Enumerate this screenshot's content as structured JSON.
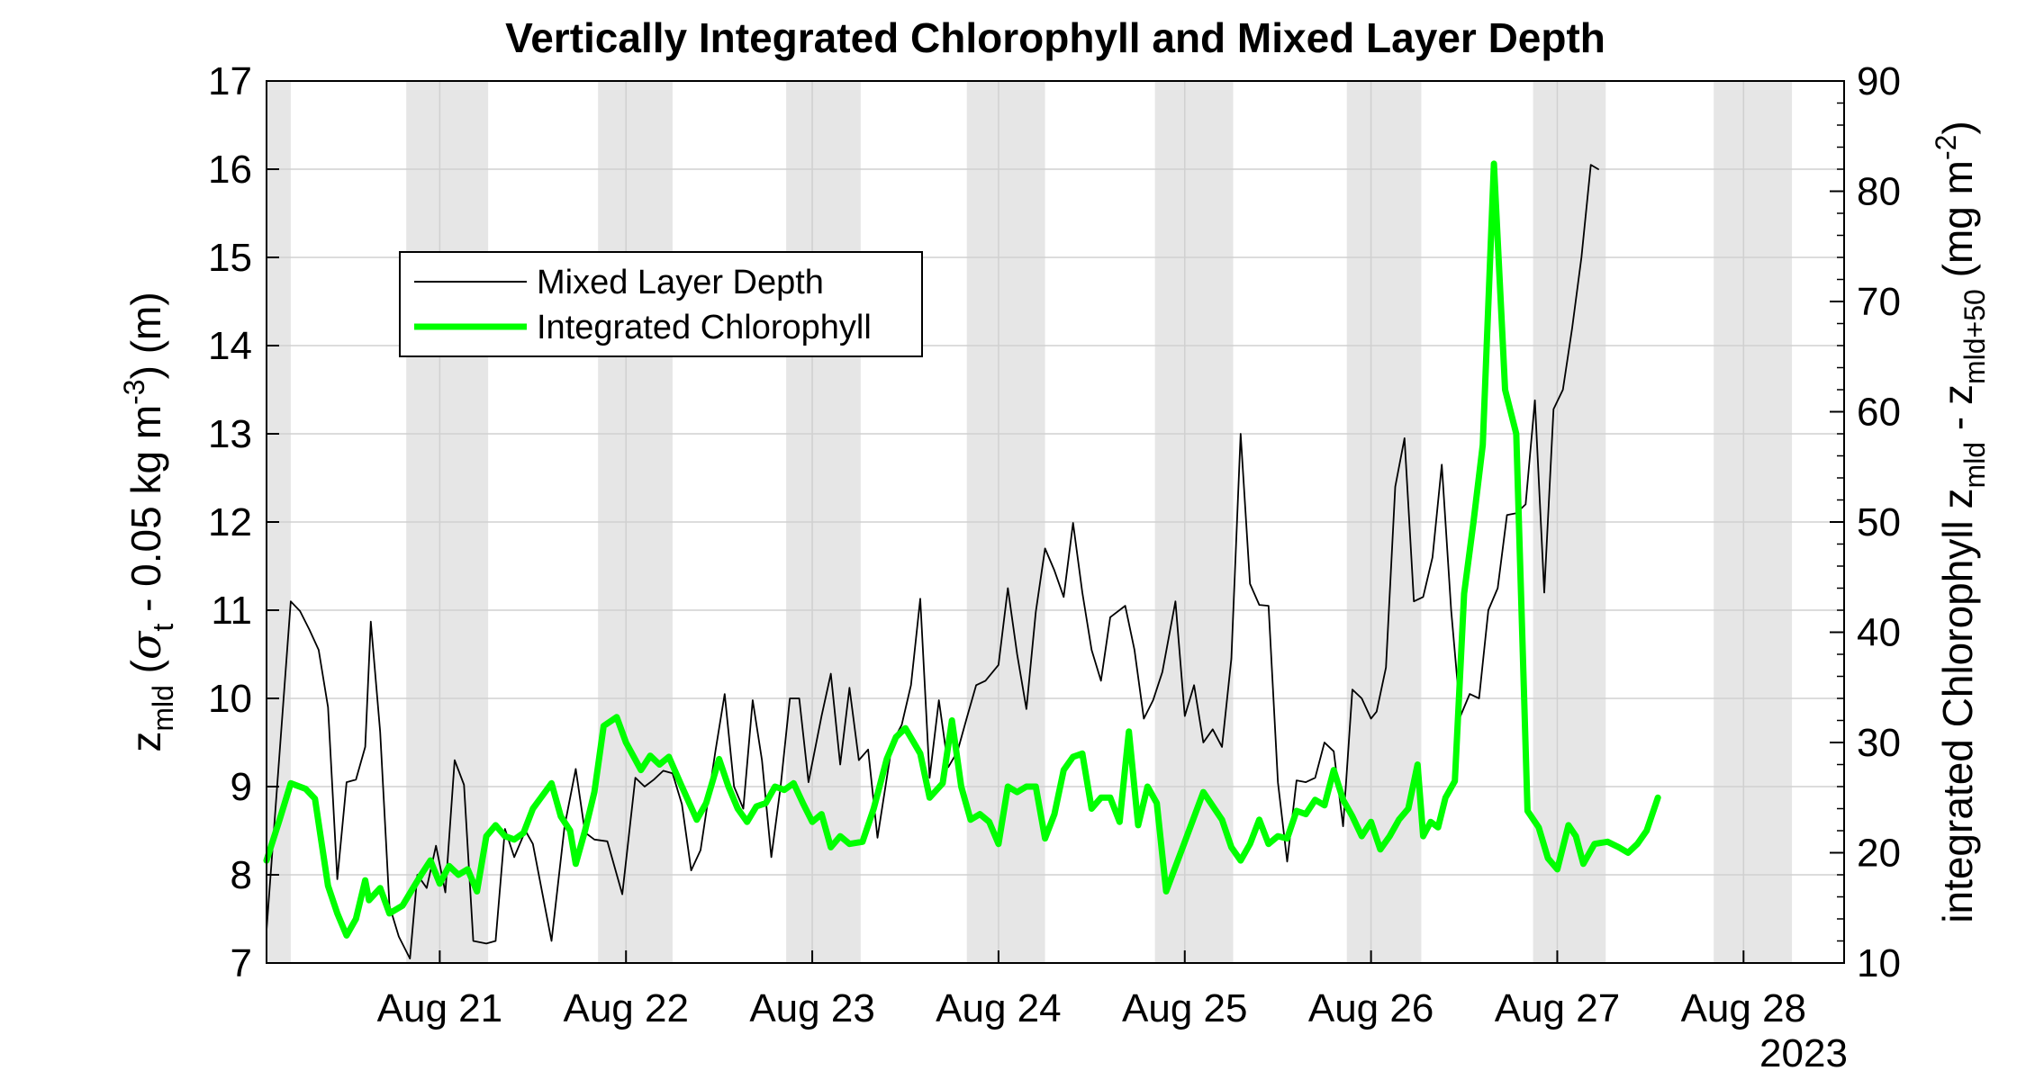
{
  "chart_data": {
    "type": "line",
    "title": "Vertically Integrated Chlorophyll and Mixed Layer Depth",
    "left_axis": {
      "label": "z_mld (σ_t - 0.05 kg m^-3) (m)",
      "label_parts": {
        "main": "z",
        "sub": "mld",
        "after_sub": " (",
        "sigma": "σ",
        "sigma_sub": "t",
        "after_sigma": " - 0.05 kg m",
        "exp": "-3",
        "tail": ") (m)"
      },
      "ylim": [
        7,
        17
      ],
      "ticks": [
        "7",
        "8",
        "9",
        "10",
        "11",
        "12",
        "13",
        "14",
        "15",
        "16",
        "17"
      ]
    },
    "right_axis": {
      "label": "integrated Chlorophyll z_mld - z_mld+50 (mg m^-2)",
      "label_parts": {
        "pre": "integrated Chlorophyll z",
        "sub1": "mld",
        "mid": " - z",
        "sub2": "mld+50",
        "unit": " (mg m",
        "exp": "-2",
        "tail": ")"
      },
      "ylim": [
        10,
        90
      ],
      "ticks": [
        "10",
        "20",
        "30",
        "40",
        "50",
        "60",
        "70",
        "80",
        "90"
      ]
    },
    "x_axis": {
      "unit": "days since Aug 20 2023 00:00",
      "xlim": [
        20.07,
        28.54
      ],
      "ticks": [
        {
          "x": 21,
          "label": "Aug 21"
        },
        {
          "x": 22,
          "label": "Aug 22"
        },
        {
          "x": 23,
          "label": "Aug 23"
        },
        {
          "x": 24,
          "label": "Aug 24"
        },
        {
          "x": 25,
          "label": "Aug 25"
        },
        {
          "x": 26,
          "label": "Aug 26"
        },
        {
          "x": 27,
          "label": "Aug 27"
        },
        {
          "x": 28,
          "label": "Aug 28"
        }
      ],
      "year_label": "2023"
    },
    "night_bands": [
      [
        20.07,
        20.2
      ],
      [
        20.82,
        21.26
      ],
      [
        21.85,
        22.25
      ],
      [
        22.86,
        23.26
      ],
      [
        23.83,
        24.25
      ],
      [
        24.84,
        25.26
      ],
      [
        25.87,
        26.27
      ],
      [
        26.87,
        27.26
      ],
      [
        27.84,
        28.26
      ]
    ],
    "legend": {
      "position": "upper-left",
      "entries": [
        "Mixed Layer Depth",
        "Integrated Chlorophyll"
      ]
    },
    "series": [
      {
        "name": "Mixed Layer Depth",
        "axis": "left",
        "color": "#000000",
        "points": [
          [
            20.07,
            7.37
          ],
          [
            20.2,
            11.1
          ],
          [
            20.25,
            10.99
          ],
          [
            20.3,
            10.78
          ],
          [
            20.35,
            10.55
          ],
          [
            20.4,
            9.9
          ],
          [
            20.45,
            7.95
          ],
          [
            20.5,
            9.05
          ],
          [
            20.55,
            9.08
          ],
          [
            20.6,
            9.45
          ],
          [
            20.63,
            10.87
          ],
          [
            20.68,
            9.62
          ],
          [
            20.73,
            7.65
          ],
          [
            20.78,
            7.3
          ],
          [
            20.84,
            7.05
          ],
          [
            20.88,
            8.0
          ],
          [
            20.93,
            7.85
          ],
          [
            20.98,
            8.33
          ],
          [
            21.03,
            7.8
          ],
          [
            21.08,
            9.3
          ],
          [
            21.13,
            9.02
          ],
          [
            21.18,
            7.25
          ],
          [
            21.25,
            7.22
          ],
          [
            21.3,
            7.25
          ],
          [
            21.35,
            8.52
          ],
          [
            21.4,
            8.2
          ],
          [
            21.46,
            8.5
          ],
          [
            21.5,
            8.35
          ],
          [
            21.6,
            7.25
          ],
          [
            21.67,
            8.55
          ],
          [
            21.73,
            9.2
          ],
          [
            21.78,
            8.48
          ],
          [
            21.83,
            8.4
          ],
          [
            21.9,
            8.38
          ],
          [
            21.98,
            7.78
          ],
          [
            22.05,
            9.1
          ],
          [
            22.1,
            9.0
          ],
          [
            22.15,
            9.08
          ],
          [
            22.2,
            9.18
          ],
          [
            22.25,
            9.15
          ],
          [
            22.3,
            8.8
          ],
          [
            22.35,
            8.05
          ],
          [
            22.4,
            8.28
          ],
          [
            22.48,
            9.4
          ],
          [
            22.53,
            10.05
          ],
          [
            22.58,
            9.0
          ],
          [
            22.63,
            8.75
          ],
          [
            22.68,
            9.98
          ],
          [
            22.73,
            9.3
          ],
          [
            22.78,
            8.2
          ],
          [
            22.83,
            9.0
          ],
          [
            22.88,
            10.0
          ],
          [
            22.93,
            10.0
          ],
          [
            22.98,
            9.05
          ],
          [
            23.05,
            9.8
          ],
          [
            23.1,
            10.28
          ],
          [
            23.15,
            9.25
          ],
          [
            23.2,
            10.12
          ],
          [
            23.25,
            9.3
          ],
          [
            23.3,
            9.42
          ],
          [
            23.35,
            8.42
          ],
          [
            23.43,
            9.5
          ],
          [
            23.48,
            9.7
          ],
          [
            23.53,
            10.15
          ],
          [
            23.58,
            11.13
          ],
          [
            23.63,
            9.1
          ],
          [
            23.68,
            9.98
          ],
          [
            23.73,
            9.22
          ],
          [
            23.78,
            9.4
          ],
          [
            23.83,
            9.78
          ],
          [
            23.88,
            10.15
          ],
          [
            23.93,
            10.2
          ],
          [
            24.0,
            10.38
          ],
          [
            24.05,
            11.25
          ],
          [
            24.1,
            10.5
          ],
          [
            24.15,
            9.88
          ],
          [
            24.2,
            10.98
          ],
          [
            24.25,
            11.7
          ],
          [
            24.3,
            11.45
          ],
          [
            24.35,
            11.15
          ],
          [
            24.4,
            11.99
          ],
          [
            24.45,
            11.2
          ],
          [
            24.5,
            10.55
          ],
          [
            24.55,
            10.2
          ],
          [
            24.6,
            10.92
          ],
          [
            24.68,
            11.05
          ],
          [
            24.73,
            10.55
          ],
          [
            24.78,
            9.77
          ],
          [
            24.83,
            9.98
          ],
          [
            24.88,
            10.3
          ],
          [
            24.95,
            11.1
          ],
          [
            25.0,
            9.8
          ],
          [
            25.05,
            10.15
          ],
          [
            25.1,
            9.5
          ],
          [
            25.15,
            9.65
          ],
          [
            25.2,
            9.45
          ],
          [
            25.25,
            10.45
          ],
          [
            25.3,
            13.0
          ],
          [
            25.35,
            11.3
          ],
          [
            25.4,
            11.06
          ],
          [
            25.45,
            11.05
          ],
          [
            25.5,
            9.05
          ],
          [
            25.55,
            8.15
          ],
          [
            25.6,
            9.07
          ],
          [
            25.65,
            9.05
          ],
          [
            25.7,
            9.1
          ],
          [
            25.75,
            9.5
          ],
          [
            25.8,
            9.4
          ],
          [
            25.85,
            8.55
          ],
          [
            25.9,
            10.1
          ],
          [
            25.95,
            10.0
          ],
          [
            26.0,
            9.77
          ],
          [
            26.03,
            9.85
          ],
          [
            26.08,
            10.35
          ],
          [
            26.13,
            12.4
          ],
          [
            26.18,
            12.95
          ],
          [
            26.23,
            11.1
          ],
          [
            26.28,
            11.15
          ],
          [
            26.33,
            11.6
          ],
          [
            26.38,
            12.65
          ],
          [
            26.43,
            11.0
          ],
          [
            26.48,
            9.8
          ],
          [
            26.53,
            10.05
          ],
          [
            26.58,
            10.0
          ],
          [
            26.63,
            11.0
          ],
          [
            26.68,
            11.25
          ],
          [
            26.73,
            12.08
          ],
          [
            26.78,
            12.1
          ],
          [
            26.83,
            12.2
          ],
          [
            26.88,
            13.38
          ],
          [
            26.93,
            11.2
          ],
          [
            26.98,
            13.28
          ],
          [
            27.03,
            13.5
          ],
          [
            27.08,
            14.2
          ],
          [
            27.13,
            15.0
          ],
          [
            27.18,
            16.05
          ],
          [
            27.22,
            16.0
          ]
        ]
      },
      {
        "name": "Integrated Chlorophyll",
        "axis": "right",
        "color": "#00ff00",
        "points": [
          [
            20.07,
            19.3
          ],
          [
            20.14,
            23.0
          ],
          [
            20.2,
            26.3
          ],
          [
            20.28,
            25.8
          ],
          [
            20.33,
            24.9
          ],
          [
            20.4,
            17.0
          ],
          [
            20.45,
            14.5
          ],
          [
            20.5,
            12.5
          ],
          [
            20.55,
            14.0
          ],
          [
            20.6,
            17.5
          ],
          [
            20.62,
            15.7
          ],
          [
            20.68,
            16.8
          ],
          [
            20.73,
            14.5
          ],
          [
            20.8,
            15.2
          ],
          [
            20.85,
            16.6
          ],
          [
            20.9,
            18.0
          ],
          [
            20.95,
            19.3
          ],
          [
            21.0,
            17.2
          ],
          [
            21.05,
            18.8
          ],
          [
            21.1,
            18.0
          ],
          [
            21.15,
            18.5
          ],
          [
            21.2,
            16.5
          ],
          [
            21.25,
            21.5
          ],
          [
            21.3,
            22.5
          ],
          [
            21.35,
            21.5
          ],
          [
            21.4,
            21.2
          ],
          [
            21.45,
            21.8
          ],
          [
            21.5,
            24.0
          ],
          [
            21.6,
            26.3
          ],
          [
            21.65,
            23.3
          ],
          [
            21.7,
            22.0
          ],
          [
            21.73,
            19.0
          ],
          [
            21.78,
            22.0
          ],
          [
            21.83,
            25.5
          ],
          [
            21.88,
            31.5
          ],
          [
            21.95,
            32.3
          ],
          [
            22.0,
            30.0
          ],
          [
            22.08,
            27.5
          ],
          [
            22.13,
            28.8
          ],
          [
            22.18,
            28.0
          ],
          [
            22.23,
            28.7
          ],
          [
            22.3,
            26.0
          ],
          [
            22.38,
            23.0
          ],
          [
            22.43,
            24.5
          ],
          [
            22.5,
            28.5
          ],
          [
            22.55,
            26.0
          ],
          [
            22.6,
            24.0
          ],
          [
            22.65,
            22.8
          ],
          [
            22.7,
            24.2
          ],
          [
            22.75,
            24.5
          ],
          [
            22.8,
            26.0
          ],
          [
            22.85,
            25.7
          ],
          [
            22.9,
            26.3
          ],
          [
            22.95,
            24.5
          ],
          [
            23.0,
            22.8
          ],
          [
            23.05,
            23.5
          ],
          [
            23.1,
            20.5
          ],
          [
            23.15,
            21.5
          ],
          [
            23.2,
            20.8
          ],
          [
            23.27,
            21.0
          ],
          [
            23.33,
            24.0
          ],
          [
            23.4,
            28.5
          ],
          [
            23.45,
            30.5
          ],
          [
            23.5,
            31.3
          ],
          [
            23.58,
            29.0
          ],
          [
            23.63,
            25.0
          ],
          [
            23.7,
            26.3
          ],
          [
            23.75,
            32.0
          ],
          [
            23.8,
            26.0
          ],
          [
            23.85,
            23.0
          ],
          [
            23.9,
            23.5
          ],
          [
            23.95,
            22.8
          ],
          [
            24.0,
            20.8
          ],
          [
            24.05,
            26.0
          ],
          [
            24.1,
            25.5
          ],
          [
            24.15,
            26.0
          ],
          [
            24.2,
            26.0
          ],
          [
            24.25,
            21.3
          ],
          [
            24.3,
            23.5
          ],
          [
            24.35,
            27.5
          ],
          [
            24.4,
            28.7
          ],
          [
            24.45,
            29.0
          ],
          [
            24.5,
            24.0
          ],
          [
            24.55,
            25.0
          ],
          [
            24.6,
            25.0
          ],
          [
            24.65,
            22.8
          ],
          [
            24.7,
            31.0
          ],
          [
            24.75,
            22.5
          ],
          [
            24.8,
            26.0
          ],
          [
            24.85,
            24.5
          ],
          [
            24.9,
            16.5
          ],
          [
            25.0,
            21.0
          ],
          [
            25.1,
            25.5
          ],
          [
            25.2,
            23.0
          ],
          [
            25.25,
            20.5
          ],
          [
            25.3,
            19.3
          ],
          [
            25.35,
            20.8
          ],
          [
            25.4,
            23.0
          ],
          [
            25.45,
            20.8
          ],
          [
            25.5,
            21.5
          ],
          [
            25.55,
            21.3
          ],
          [
            25.6,
            23.8
          ],
          [
            25.65,
            23.5
          ],
          [
            25.7,
            24.8
          ],
          [
            25.75,
            24.3
          ],
          [
            25.8,
            27.5
          ],
          [
            25.85,
            24.8
          ],
          [
            25.9,
            23.3
          ],
          [
            25.95,
            21.5
          ],
          [
            26.0,
            22.8
          ],
          [
            26.05,
            20.3
          ],
          [
            26.1,
            21.5
          ],
          [
            26.15,
            23.0
          ],
          [
            26.2,
            24.0
          ],
          [
            26.25,
            28.0
          ],
          [
            26.28,
            21.5
          ],
          [
            26.32,
            22.8
          ],
          [
            26.36,
            22.3
          ],
          [
            26.4,
            25.0
          ],
          [
            26.45,
            26.5
          ],
          [
            26.5,
            43.5
          ],
          [
            26.55,
            50.0
          ],
          [
            26.6,
            57.0
          ],
          [
            26.66,
            82.5
          ],
          [
            26.72,
            62.0
          ],
          [
            26.78,
            58.0
          ],
          [
            26.84,
            23.8
          ],
          [
            26.9,
            22.3
          ],
          [
            26.95,
            19.5
          ],
          [
            27.0,
            18.5
          ],
          [
            27.06,
            22.5
          ],
          [
            27.1,
            21.5
          ],
          [
            27.14,
            19.0
          ],
          [
            27.2,
            20.8
          ],
          [
            27.27,
            21.0
          ],
          [
            27.33,
            20.5
          ],
          [
            27.38,
            20.0
          ],
          [
            27.43,
            20.8
          ],
          [
            27.48,
            22.0
          ],
          [
            27.54,
            25.0
          ]
        ]
      }
    ]
  }
}
